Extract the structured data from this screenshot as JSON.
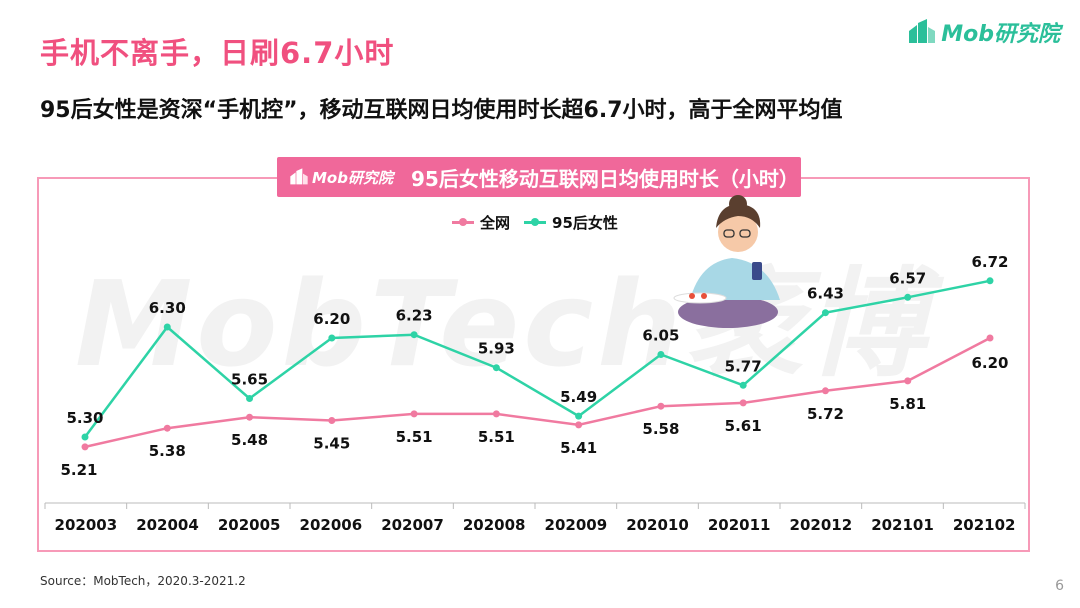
{
  "header": {
    "title": "手机不离手，日刷6.7小时",
    "subtitle": "95后女性是资深“手机控”，移动互联网日均使用时长超6.7小时，高于全网平均值",
    "logo_text": "Mob研究院"
  },
  "chart_header": {
    "logo_text": "Mob研究院",
    "title": "95后女性移动互联网日均使用时长（小时）"
  },
  "watermark": "MobTech袤博",
  "source": "Source：MobTech，2020.3-2021.2",
  "page_number": "6",
  "colors": {
    "pink": "#f07aa0",
    "teal": "#2ed3a6",
    "accent": "#f0507f",
    "header_bg": "#f0689a"
  },
  "chart_data": {
    "type": "line",
    "title": "95后女性移动互联网日均使用时长（小时）",
    "categories": [
      "202003",
      "202004",
      "202005",
      "202006",
      "202007",
      "202008",
      "202009",
      "202010",
      "202011",
      "202012",
      "202101",
      "202102"
    ],
    "series": [
      {
        "name": "全网",
        "values": [
          5.21,
          5.38,
          5.48,
          5.45,
          5.51,
          5.51,
          5.41,
          5.58,
          5.61,
          5.72,
          5.81,
          6.2
        ]
      },
      {
        "name": "95后女性",
        "values": [
          5.3,
          6.3,
          5.65,
          6.2,
          6.23,
          5.93,
          5.49,
          6.05,
          5.77,
          6.43,
          6.57,
          6.72
        ]
      }
    ],
    "legend": "top-center",
    "grid": false
  }
}
